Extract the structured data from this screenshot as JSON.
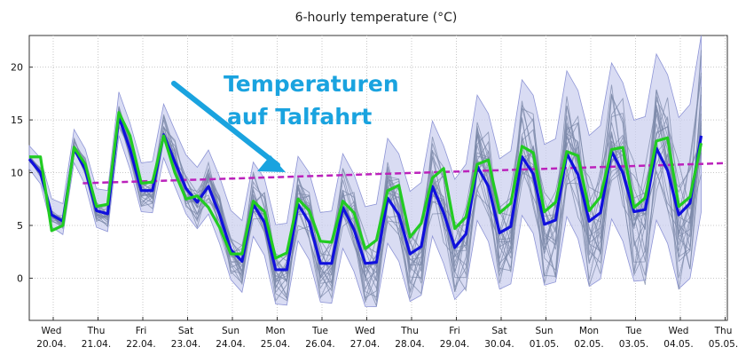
{
  "chart_data": {
    "type": "line",
    "title": "6-hourly temperature (°C)",
    "xlabel": "",
    "ylabel": "",
    "ylim": [
      -4,
      23
    ],
    "yticks": [
      0,
      5,
      10,
      15,
      20
    ],
    "grid": true,
    "x_ticks": [
      {
        "day": "Wed",
        "date": "20.04."
      },
      {
        "day": "Thu",
        "date": "21.04."
      },
      {
        "day": "Fri",
        "date": "22.04."
      },
      {
        "day": "Sat",
        "date": "23.04."
      },
      {
        "day": "Sun",
        "date": "24.04."
      },
      {
        "day": "Mon",
        "date": "25.04."
      },
      {
        "day": "Tue",
        "date": "26.04."
      },
      {
        "day": "Wed",
        "date": "27.04."
      },
      {
        "day": "Thu",
        "date": "28.04."
      },
      {
        "day": "Fri",
        "date": "29.04."
      },
      {
        "day": "Sat",
        "date": "30.04."
      },
      {
        "day": "Sun",
        "date": "01.05."
      },
      {
        "day": "Mon",
        "date": "02.05."
      },
      {
        "day": "Tue",
        "date": "03.05."
      },
      {
        "day": "Wed",
        "date": "04.05."
      },
      {
        "day": "Thu",
        "date": "05.05."
      }
    ],
    "series": [
      {
        "role": "ensemble-mean",
        "color": "#1010dd",
        "values": [
          11.3,
          10.0,
          6.0,
          5.4,
          12.3,
          10.3,
          6.4,
          6.1,
          15.3,
          12.2,
          8.3,
          8.3,
          13.6,
          11.0,
          8.5,
          7.2,
          8.7,
          6.0,
          2.7,
          1.6,
          7.0,
          5.3,
          0.8,
          0.8,
          7.0,
          5.3,
          1.4,
          1.4,
          6.7,
          4.6,
          1.4,
          1.5,
          7.6,
          6.0,
          2.3,
          3.0,
          8.7,
          6.2,
          2.9,
          4.2,
          10.6,
          8.7,
          4.3,
          4.9,
          11.5,
          9.9,
          5.1,
          5.5,
          11.8,
          9.8,
          5.4,
          6.2,
          12.0,
          10.0,
          6.3,
          6.5,
          12.3,
          10.2,
          6.0,
          7.1,
          13.5
        ]
      },
      {
        "role": "deterministic-run",
        "color": "#22cc22",
        "values": [
          11.5,
          11.5,
          4.5,
          5.0,
          12.4,
          10.8,
          6.8,
          7.0,
          15.7,
          13.5,
          9.0,
          9.1,
          13.5,
          10.0,
          7.5,
          7.8,
          6.7,
          4.8,
          2.3,
          2.3,
          7.3,
          6.3,
          1.9,
          2.4,
          7.5,
          6.4,
          3.5,
          3.4,
          7.3,
          6.2,
          2.8,
          3.6,
          8.3,
          8.8,
          3.9,
          5.2,
          9.5,
          10.4,
          4.7,
          5.8,
          10.8,
          11.2,
          6.2,
          7.1,
          12.5,
          11.9,
          6.3,
          7.2,
          12.0,
          11.6,
          6.4,
          7.7,
          12.2,
          12.4,
          6.7,
          7.6,
          13.0,
          13.3,
          6.8,
          7.7,
          12.8
        ]
      },
      {
        "role": "climate-mean",
        "color": "#bb22bb",
        "x_range": [
          0.66,
          15.0
        ],
        "values": [
          9.0,
          10.9
        ]
      }
    ],
    "annotations": [
      "Temperaturen",
      "auf Talfahrt"
    ]
  }
}
